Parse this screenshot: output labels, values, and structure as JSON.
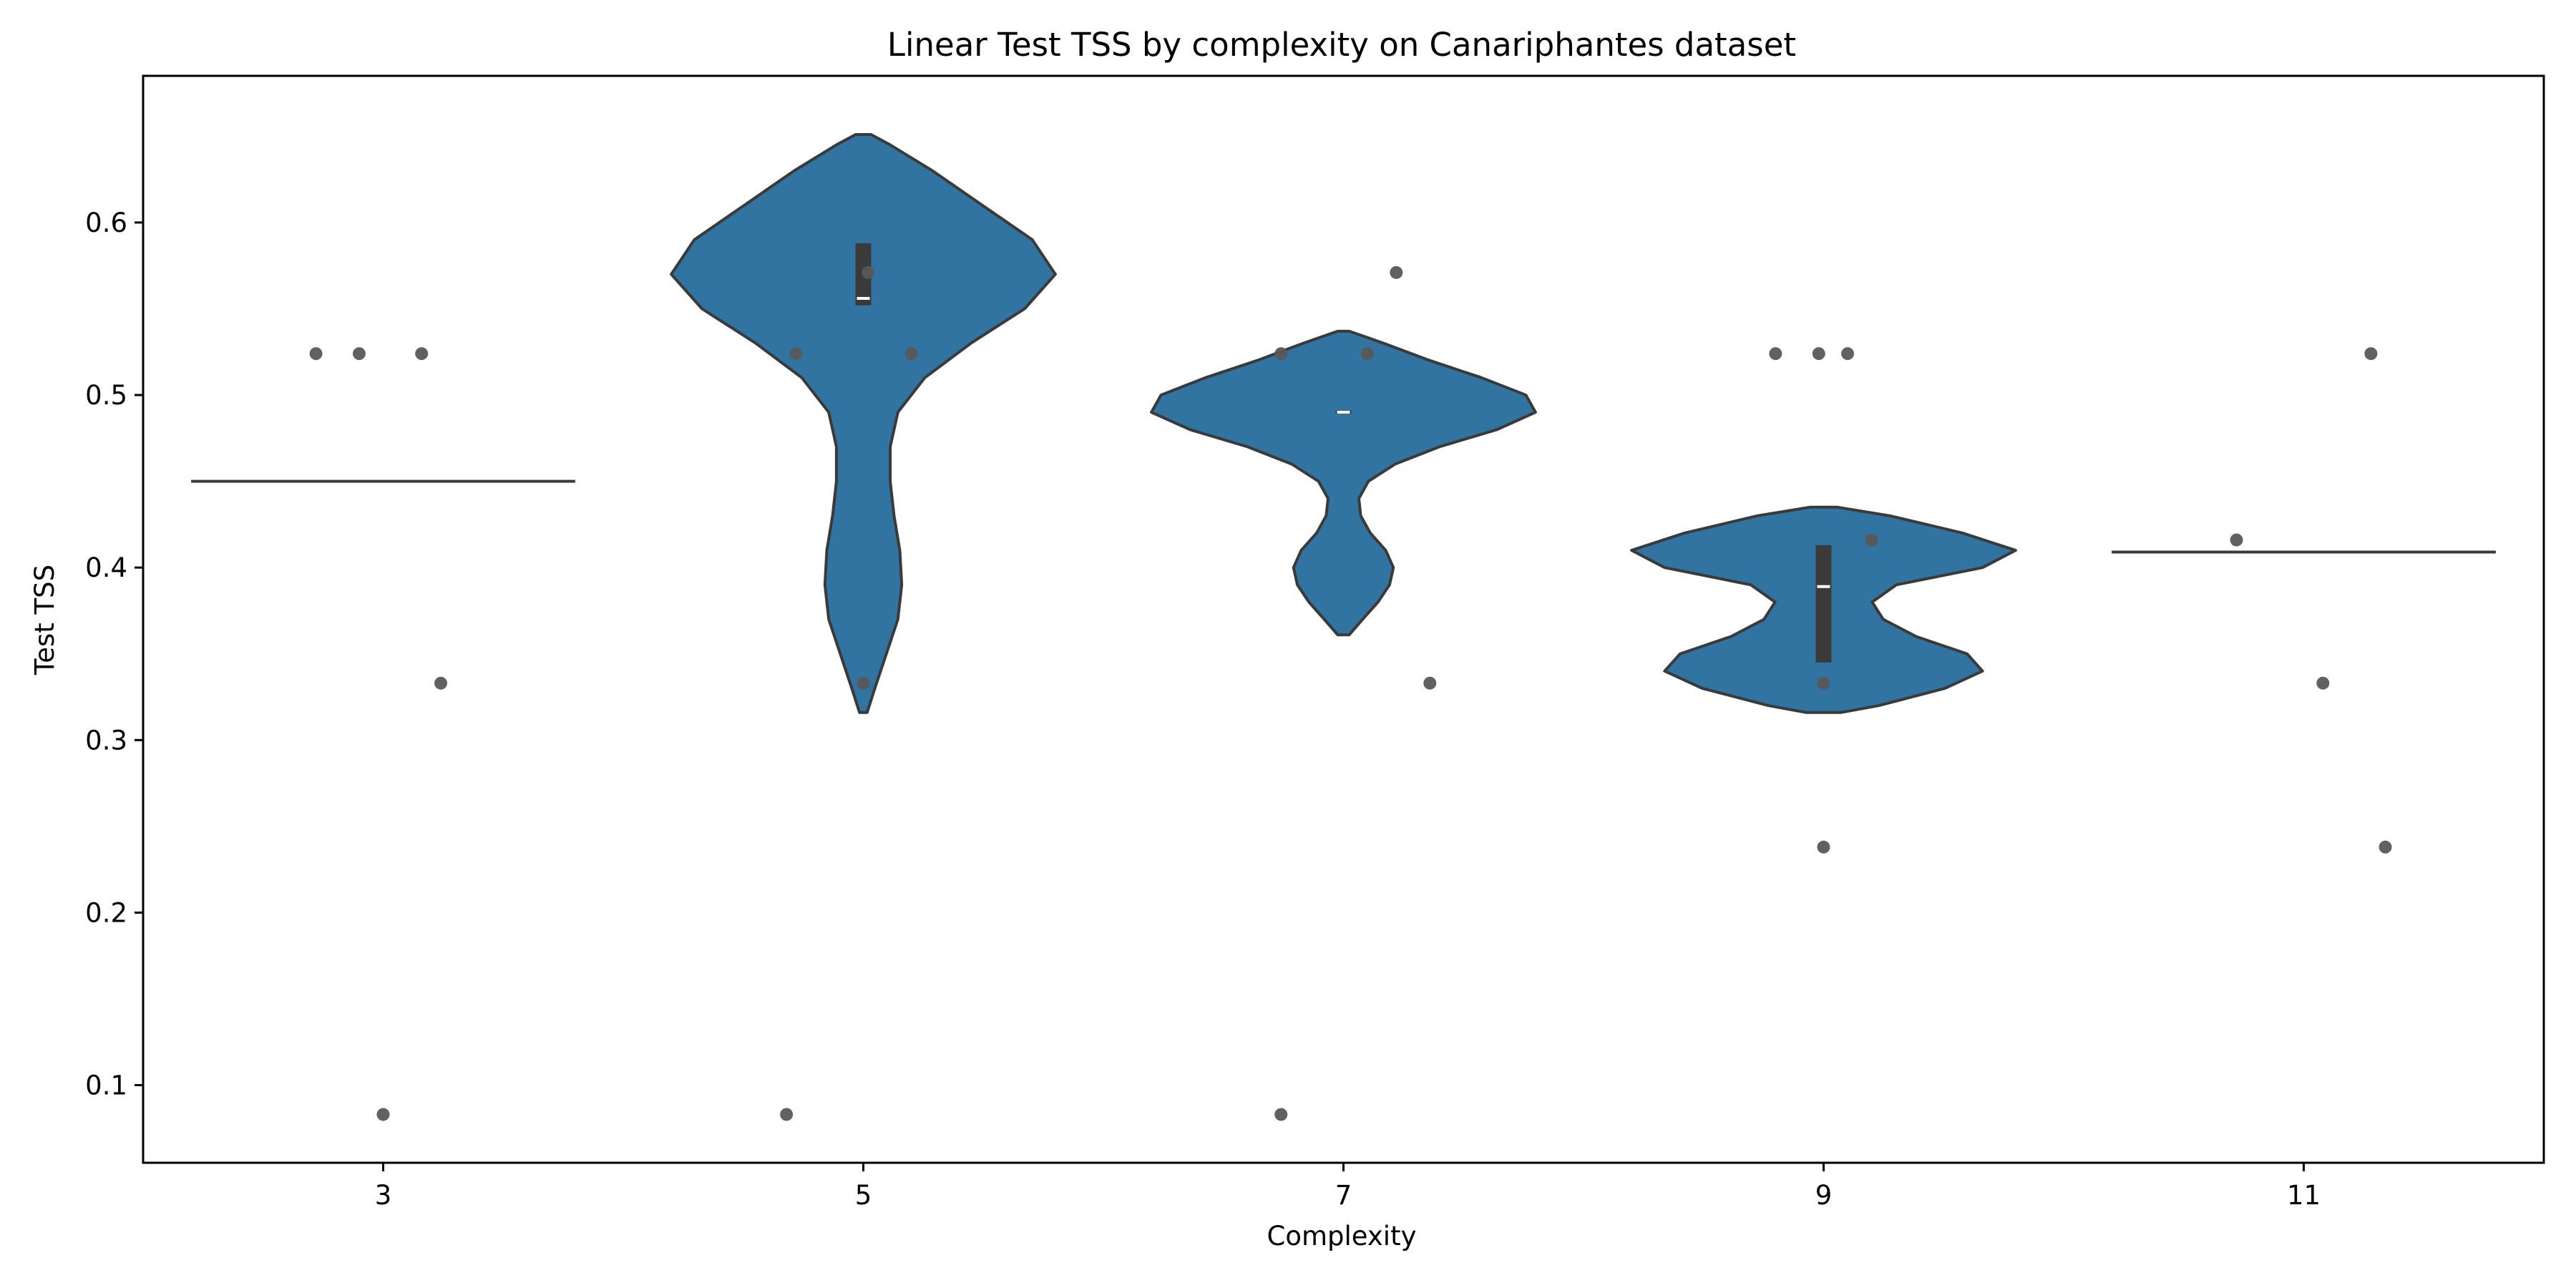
{
  "chart_data": {
    "type": "violin",
    "title": "Linear Test TSS by complexity on Canariphantes dataset",
    "xlabel": "Complexity",
    "ylabel": "Test TSS",
    "categories": [
      "3",
      "5",
      "7",
      "9",
      "11"
    ],
    "ylim": [
      0.055,
      0.685
    ],
    "yticks": [
      "0.1",
      "0.2",
      "0.3",
      "0.4",
      "0.5",
      "0.6"
    ],
    "grid": false,
    "colors": {
      "violin_fill": "#3274a1",
      "violin_edge": "#3a3a3a",
      "box": "#3a3a3a",
      "median": "#ffffff",
      "points": "#595959"
    },
    "violins": [
      {
        "category": "3",
        "kind": "flat",
        "value": 0.45
      },
      {
        "category": "5",
        "kind": "density",
        "ymin": 0.316,
        "ymax": 0.651,
        "median": 0.556,
        "q1": 0.552,
        "q3": 0.588,
        "profile": [
          [
            0.316,
            0.01
          ],
          [
            0.33,
            0.03
          ],
          [
            0.35,
            0.06
          ],
          [
            0.37,
            0.09
          ],
          [
            0.39,
            0.1
          ],
          [
            0.41,
            0.095
          ],
          [
            0.43,
            0.08
          ],
          [
            0.45,
            0.07
          ],
          [
            0.47,
            0.07
          ],
          [
            0.49,
            0.09
          ],
          [
            0.51,
            0.16
          ],
          [
            0.53,
            0.28
          ],
          [
            0.55,
            0.42
          ],
          [
            0.57,
            0.5
          ],
          [
            0.59,
            0.44
          ],
          [
            0.61,
            0.31
          ],
          [
            0.63,
            0.18
          ],
          [
            0.645,
            0.07
          ],
          [
            0.651,
            0.02
          ]
        ]
      },
      {
        "category": "7",
        "kind": "density",
        "ymin": 0.361,
        "ymax": 0.537,
        "median": 0.49,
        "q1": 0.489,
        "q3": 0.491,
        "profile": [
          [
            0.361,
            0.03
          ],
          [
            0.37,
            0.1
          ],
          [
            0.38,
            0.18
          ],
          [
            0.39,
            0.24
          ],
          [
            0.4,
            0.26
          ],
          [
            0.41,
            0.22
          ],
          [
            0.42,
            0.14
          ],
          [
            0.43,
            0.09
          ],
          [
            0.44,
            0.08
          ],
          [
            0.45,
            0.13
          ],
          [
            0.46,
            0.27
          ],
          [
            0.47,
            0.5
          ],
          [
            0.48,
            0.8
          ],
          [
            0.49,
            1.0
          ],
          [
            0.5,
            0.95
          ],
          [
            0.51,
            0.72
          ],
          [
            0.52,
            0.45
          ],
          [
            0.53,
            0.21
          ],
          [
            0.537,
            0.03
          ]
        ]
      },
      {
        "category": "9",
        "kind": "density",
        "ymin": 0.316,
        "ymax": 0.435,
        "median": 0.389,
        "q1": 0.345,
        "q3": 0.413,
        "profile": [
          [
            0.316,
            0.08
          ],
          [
            0.32,
            0.25
          ],
          [
            0.33,
            0.55
          ],
          [
            0.34,
            0.72
          ],
          [
            0.35,
            0.65
          ],
          [
            0.36,
            0.42
          ],
          [
            0.37,
            0.27
          ],
          [
            0.38,
            0.22
          ],
          [
            0.39,
            0.33
          ],
          [
            0.4,
            0.72
          ],
          [
            0.41,
            0.87
          ],
          [
            0.42,
            0.63
          ],
          [
            0.43,
            0.3
          ],
          [
            0.435,
            0.06
          ]
        ]
      },
      {
        "category": "11",
        "kind": "flat",
        "value": 0.409
      }
    ],
    "points": [
      {
        "category": "3",
        "values": [
          0.524,
          0.524,
          0.524,
          0.333,
          0.083
        ],
        "jitter": [
          -0.28,
          -0.1,
          0.16,
          0.24,
          0.0
        ]
      },
      {
        "category": "5",
        "values": [
          0.571,
          0.524,
          0.524,
          0.333,
          0.083
        ],
        "jitter": [
          0.02,
          -0.28,
          0.2,
          0.0,
          -0.32
        ]
      },
      {
        "category": "7",
        "values": [
          0.571,
          0.524,
          0.524,
          0.333,
          0.083
        ],
        "jitter": [
          0.22,
          -0.26,
          0.1,
          0.36,
          -0.26
        ]
      },
      {
        "category": "9",
        "values": [
          0.524,
          0.524,
          0.524,
          0.416,
          0.333,
          0.238
        ],
        "jitter": [
          -0.2,
          -0.02,
          0.1,
          0.2,
          0.0,
          0.0
        ]
      },
      {
        "category": "11",
        "values": [
          0.524,
          0.416,
          0.333,
          0.238
        ],
        "jitter": [
          0.28,
          -0.28,
          0.08,
          0.34
        ]
      }
    ]
  }
}
